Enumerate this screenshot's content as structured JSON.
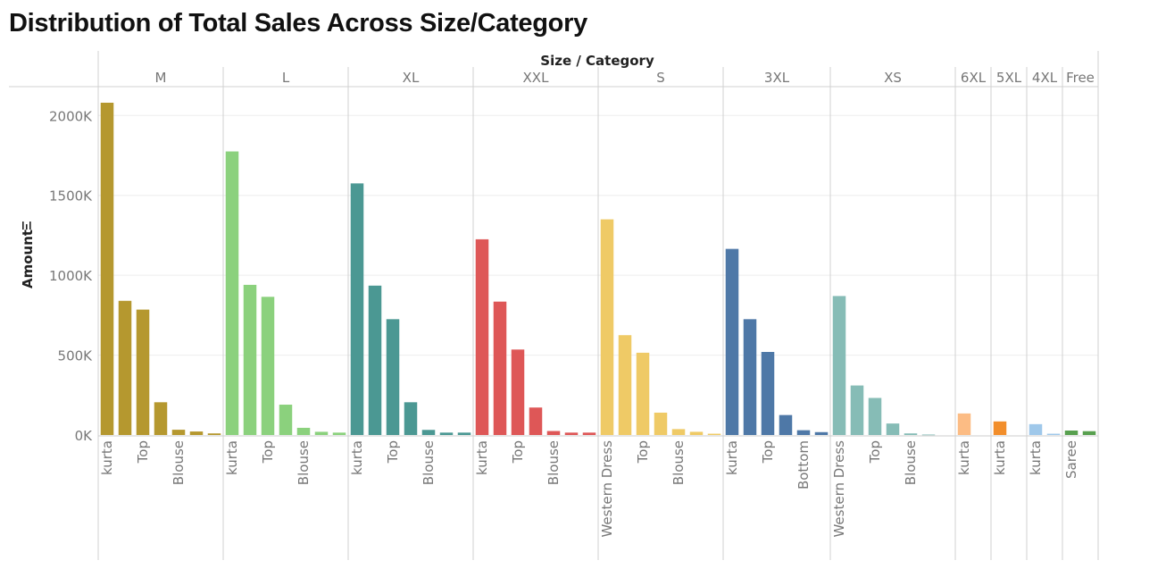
{
  "chart_data": {
    "type": "bar",
    "title": "Distribution of Total Sales Across Size/Category",
    "header_label": "Size / Category",
    "ylabel": "Amount",
    "ylabel_icon": "sort-icon",
    "ylim": [
      0,
      2100000
    ],
    "yticks": [
      {
        "value": 0,
        "label": "0K"
      },
      {
        "value": 500000,
        "label": "500K"
      },
      {
        "value": 1000000,
        "label": "1000K"
      },
      {
        "value": 1500000,
        "label": "1500K"
      },
      {
        "value": 2000000,
        "label": "2000K"
      }
    ],
    "groups": [
      {
        "size": "M",
        "color": "#b5982f",
        "bars": [
          {
            "category": "kurta",
            "value": 2080000
          },
          {
            "category": "",
            "value": 840000
          },
          {
            "category": "Top",
            "value": 785000
          },
          {
            "category": "",
            "value": 205000
          },
          {
            "category": "Blouse",
            "value": 33000
          },
          {
            "category": "",
            "value": 22000
          },
          {
            "category": "",
            "value": 10000
          }
        ],
        "visible_labels": [
          "kurta",
          "Top",
          "Blouse"
        ]
      },
      {
        "size": "L",
        "color": "#8bd17d",
        "bars": [
          {
            "category": "kurta",
            "value": 1775000
          },
          {
            "category": "",
            "value": 940000
          },
          {
            "category": "Top",
            "value": 865000
          },
          {
            "category": "",
            "value": 190000
          },
          {
            "category": "Blouse",
            "value": 45000
          },
          {
            "category": "",
            "value": 20000
          },
          {
            "category": "",
            "value": 15000
          }
        ],
        "visible_labels": [
          "kurta",
          "Top",
          "Blouse"
        ]
      },
      {
        "size": "XL",
        "color": "#4b9893",
        "bars": [
          {
            "category": "kurta",
            "value": 1575000
          },
          {
            "category": "",
            "value": 935000
          },
          {
            "category": "Top",
            "value": 725000
          },
          {
            "category": "",
            "value": 205000
          },
          {
            "category": "Blouse",
            "value": 32000
          },
          {
            "category": "",
            "value": 15000
          },
          {
            "category": "",
            "value": 15000
          }
        ],
        "visible_labels": [
          "kurta",
          "Top",
          "Blouse"
        ]
      },
      {
        "size": "XXL",
        "color": "#de5757",
        "bars": [
          {
            "category": "kurta",
            "value": 1225000
          },
          {
            "category": "",
            "value": 835000
          },
          {
            "category": "Top",
            "value": 535000
          },
          {
            "category": "",
            "value": 172000
          },
          {
            "category": "Blouse",
            "value": 25000
          },
          {
            "category": "",
            "value": 15000
          },
          {
            "category": "",
            "value": 15000
          }
        ],
        "visible_labels": [
          "kurta",
          "Top",
          "Blouse"
        ]
      },
      {
        "size": "S",
        "color": "#efca66",
        "bars": [
          {
            "category": "Western Dress",
            "value": 1350000
          },
          {
            "category": "",
            "value": 625000
          },
          {
            "category": "Top",
            "value": 515000
          },
          {
            "category": "",
            "value": 140000
          },
          {
            "category": "Blouse",
            "value": 37000
          },
          {
            "category": "",
            "value": 20000
          },
          {
            "category": "",
            "value": 8000
          }
        ],
        "visible_labels": [
          "Western Dress",
          "Top",
          "Blouse"
        ]
      },
      {
        "size": "3XL",
        "color": "#4e78a7",
        "bars": [
          {
            "category": "kurta",
            "value": 1165000
          },
          {
            "category": "",
            "value": 725000
          },
          {
            "category": "Top",
            "value": 520000
          },
          {
            "category": "",
            "value": 125000
          },
          {
            "category": "Bottom",
            "value": 30000
          },
          {
            "category": "",
            "value": 18000
          }
        ],
        "visible_labels": [
          "kurta",
          "Top",
          "Bottom"
        ]
      },
      {
        "size": "XS",
        "color": "#86bcb6",
        "bars": [
          {
            "category": "Western Dress",
            "value": 870000
          },
          {
            "category": "",
            "value": 310000
          },
          {
            "category": "Top",
            "value": 232000
          },
          {
            "category": "",
            "value": 72000
          },
          {
            "category": "Blouse",
            "value": 10000
          },
          {
            "category": "",
            "value": 3000
          }
        ],
        "visible_labels": [
          "Western Dress",
          "Top",
          "Blouse"
        ]
      },
      {
        "size": "6XL",
        "color": "#fcbc84",
        "bars": [
          {
            "category": "kurta",
            "value": 135000
          }
        ],
        "visible_labels": [
          "kurta"
        ]
      },
      {
        "size": "5XL",
        "color": "#f28e2b",
        "bars": [
          {
            "category": "kurta",
            "value": 85000
          }
        ],
        "visible_labels": [
          "kurta"
        ]
      },
      {
        "size": "4XL",
        "color": "#9fc8ea",
        "bars": [
          {
            "category": "kurta",
            "value": 68000
          },
          {
            "category": "",
            "value": 8000
          }
        ],
        "visible_labels": [
          "kurta"
        ]
      },
      {
        "size": "Free",
        "color": "#58a04f",
        "bars": [
          {
            "category": "Saree",
            "value": 28000
          },
          {
            "category": "",
            "value": 24000
          }
        ],
        "visible_labels": [
          "Saree"
        ]
      }
    ]
  }
}
